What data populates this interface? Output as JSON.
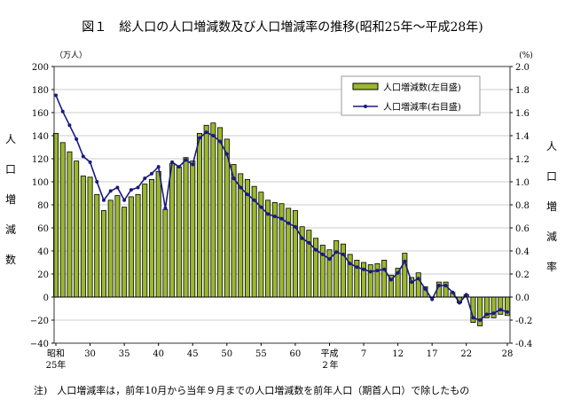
{
  "title": "図１　総人口の人口増減数及び人口増減率の推移(昭和25年～平成28年)",
  "note": "注)　人口増減率は，前年10月から当年９月までの人口増減数を前年人口（期首人口）で除したもの",
  "chart_data": {
    "type": "bar+line",
    "left_unit": "（万人）",
    "right_unit": "(%)",
    "ylabel_left": "人口増減数",
    "ylabel_right": "人口増減率",
    "ylim_left": [
      -40,
      200
    ],
    "ylim_right": [
      -0.4,
      2.0
    ],
    "yticks_left": [
      "200",
      "180",
      "160",
      "140",
      "120",
      "100",
      "80",
      "60",
      "40",
      "20",
      "0",
      "−20",
      "−40"
    ],
    "yticks_right": [
      "2.0",
      "1.8",
      "1.6",
      "1.4",
      "1.2",
      "1.0",
      "0.8",
      "0.6",
      "0.4",
      "0.2",
      "0.0",
      "-0.2",
      "-0.4"
    ],
    "grid": true,
    "legend_placement": "top-right",
    "xtick_labels": [
      {
        "index": 0,
        "line1": "昭和",
        "line2": "25年"
      },
      {
        "index": 5,
        "line1": "30",
        "line2": ""
      },
      {
        "index": 10,
        "line1": "35",
        "line2": ""
      },
      {
        "index": 15,
        "line1": "40",
        "line2": ""
      },
      {
        "index": 20,
        "line1": "45",
        "line2": ""
      },
      {
        "index": 25,
        "line1": "50",
        "line2": ""
      },
      {
        "index": 30,
        "line1": "55",
        "line2": ""
      },
      {
        "index": 35,
        "line1": "60",
        "line2": ""
      },
      {
        "index": 40,
        "line1": "平成",
        "line2": "２年"
      },
      {
        "index": 45,
        "line1": "7",
        "line2": ""
      },
      {
        "index": 50,
        "line1": "12",
        "line2": ""
      },
      {
        "index": 55,
        "line1": "17",
        "line2": ""
      },
      {
        "index": 60,
        "line1": "22",
        "line2": ""
      },
      {
        "index": 66,
        "line1": "28",
        "line2": ""
      }
    ],
    "x": [
      "S25",
      "S26",
      "S27",
      "S28",
      "S29",
      "S30",
      "S31",
      "S32",
      "S33",
      "S34",
      "S35",
      "S36",
      "S37",
      "S38",
      "S39",
      "S40",
      "S41",
      "S42",
      "S43",
      "S44",
      "S45",
      "S46",
      "S47",
      "S48",
      "S49",
      "S50",
      "S51",
      "S52",
      "S53",
      "S54",
      "S55",
      "S56",
      "S57",
      "S58",
      "S59",
      "S60",
      "S61",
      "S62",
      "S63",
      "H1",
      "H2",
      "H3",
      "H4",
      "H5",
      "H6",
      "H7",
      "H8",
      "H9",
      "H10",
      "H11",
      "H12",
      "H13",
      "H14",
      "H15",
      "H16",
      "H17",
      "H18",
      "H19",
      "H20",
      "H21",
      "H22",
      "H23",
      "H24",
      "H25",
      "H26",
      "H27",
      "H28"
    ],
    "series": [
      {
        "name": "人口増減数(左目盛)",
        "type": "bar",
        "axis": "left",
        "color": "#9ab82e",
        "values": [
          142,
          134,
          126,
          118,
          105,
          104,
          89,
          75,
          84,
          88,
          78,
          87,
          89,
          98,
          102,
          109,
          76,
          116,
          113,
          121,
          118,
          142,
          149,
          151,
          147,
          137,
          115,
          107,
          102,
          96,
          91,
          84,
          82,
          81,
          77,
          75,
          61,
          58,
          51,
          45,
          41,
          49,
          46,
          37,
          32,
          30,
          28,
          29,
          32,
          19,
          25,
          38,
          17,
          21,
          9,
          -0.5,
          13,
          13,
          4,
          -5,
          2,
          -22,
          -25,
          -18,
          -18,
          -15,
          -16
        ]
      },
      {
        "name": "人口増減率(右目盛)",
        "type": "line",
        "axis": "right",
        "color": "#1a1a80",
        "values": [
          1.75,
          1.61,
          1.49,
          1.37,
          1.22,
          1.17,
          1.0,
          0.84,
          0.92,
          0.95,
          0.84,
          0.93,
          0.95,
          1.03,
          1.07,
          1.13,
          0.77,
          1.17,
          1.13,
          1.19,
          1.15,
          1.38,
          1.43,
          1.4,
          1.35,
          1.24,
          1.03,
          0.95,
          0.89,
          0.84,
          0.78,
          0.72,
          0.7,
          0.68,
          0.64,
          0.61,
          0.51,
          0.47,
          0.41,
          0.37,
          0.33,
          0.39,
          0.37,
          0.29,
          0.26,
          0.24,
          0.22,
          0.23,
          0.24,
          0.15,
          0.21,
          0.31,
          0.13,
          0.16,
          0.07,
          -0.02,
          0.1,
          0.1,
          0.04,
          -0.05,
          0.02,
          -0.18,
          -0.2,
          -0.15,
          -0.14,
          -0.11,
          -0.13
        ]
      }
    ]
  }
}
